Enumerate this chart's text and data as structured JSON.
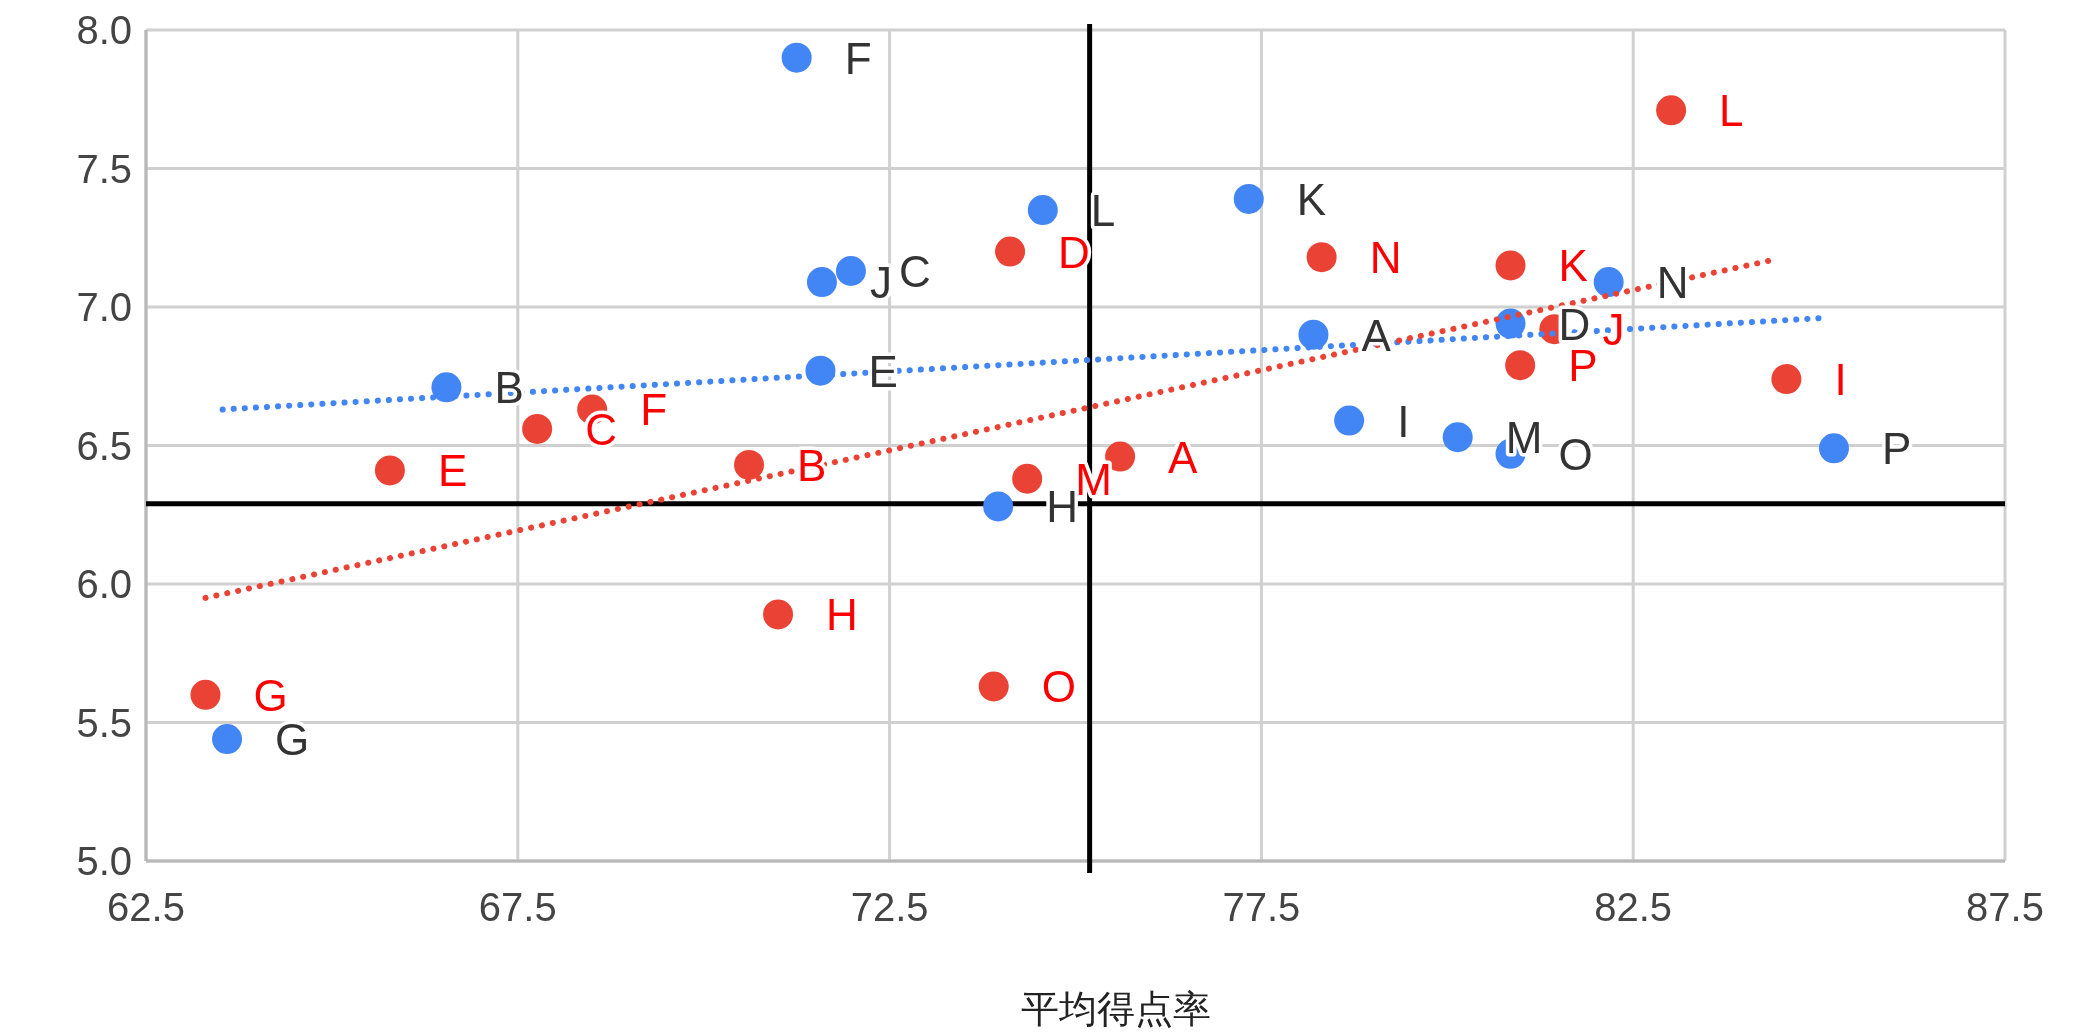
{
  "chart_data": {
    "type": "scatter",
    "xlabel": "平均得点率",
    "xlim": [
      62.5,
      87.5
    ],
    "xticks": [
      62.5,
      67.5,
      72.5,
      77.5,
      82.5,
      87.5
    ],
    "ylim": [
      5,
      8
    ],
    "yticks": [
      {
        "value": 5,
        "label": "5.0"
      },
      5.5,
      {
        "value": 6,
        "label": "6.0"
      },
      6.5,
      {
        "value": 7,
        "label": "7.0"
      },
      7.5,
      {
        "value": 8,
        "label": "8.0"
      }
    ],
    "grid": true,
    "marker": "circle",
    "ref_lines": [
      {
        "axis": "x",
        "value": 75.19,
        "color": "#000000"
      },
      {
        "axis": "y",
        "value": 6.29,
        "color": "#000000"
      }
    ],
    "series": [
      {
        "color": "#4285f4",
        "x": [
          71.25,
          66.54,
          71.59,
          71.98,
          71.57,
          74.56,
          73.96,
          77.33,
          78.2,
          78.68,
          80.14,
          80.85,
          80.85,
          82.17,
          85.2,
          63.59
        ],
        "values": [
          7.9,
          6.71,
          7.09,
          7.13,
          6.77,
          7.35,
          6.28,
          7.39,
          6.9,
          6.59,
          6.53,
          6.47,
          6.94,
          7.09,
          6.49,
          5.44
        ],
        "value_labels": [
          "F",
          "B",
          "J",
          "C",
          "E",
          "L",
          "H",
          "K",
          "A",
          "I",
          "M",
          "O",
          "D",
          "N",
          "P",
          "G"
        ]
      },
      {
        "color": "#ea4335",
        "x": [
          83.01,
          84.56,
          78.31,
          80.85,
          81.44,
          80.98,
          74.12,
          75.6,
          74.35,
          70.61,
          68.5,
          67.76,
          65.78,
          71.0,
          73.9,
          63.3
        ],
        "values": [
          7.71,
          6.74,
          7.18,
          7.15,
          6.92,
          6.79,
          7.2,
          6.46,
          6.38,
          6.43,
          6.63,
          6.56,
          6.41,
          5.89,
          5.63,
          5.6
        ],
        "value_labels": [
          "L",
          "I",
          "N",
          "K",
          "J",
          "P",
          "D",
          "A",
          "M",
          "B",
          "F",
          "C",
          "E",
          "H",
          "O",
          "G"
        ]
      },
      {
        "type": "line",
        "color": "#4285f4",
        "line_style": "dotted",
        "marker": "none",
        "x": [
          63.53,
          85.04
        ],
        "values": [
          6.63,
          6.96
        ]
      },
      {
        "type": "line",
        "color": "#ea4335",
        "line_style": "dotted",
        "marker": "none",
        "x": [
          63.3,
          84.38
        ],
        "values": [
          5.95,
          7.17
        ]
      }
    ]
  }
}
